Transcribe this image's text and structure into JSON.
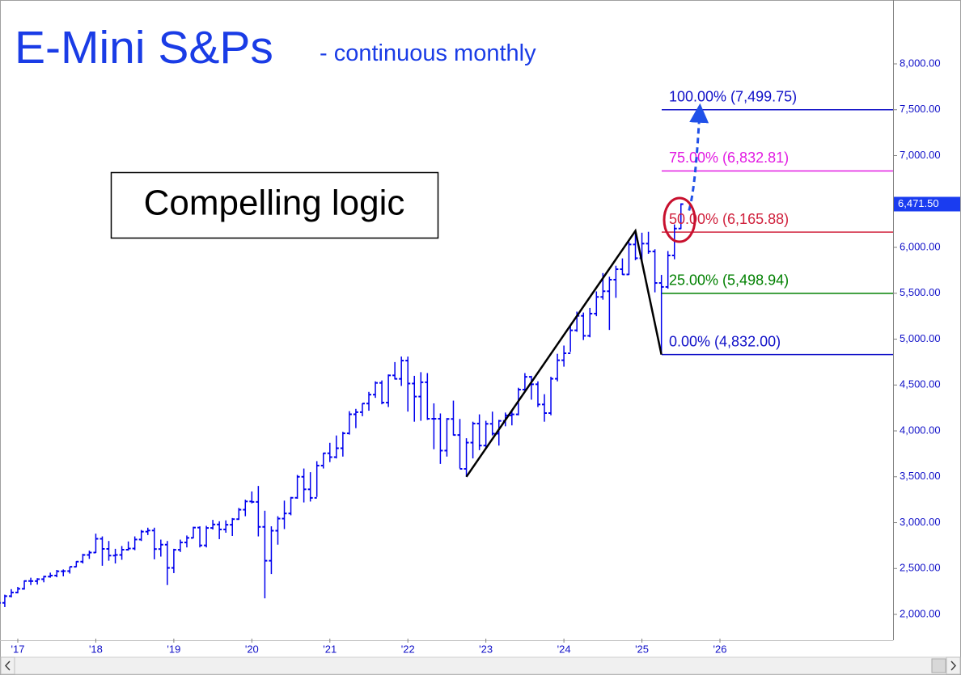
{
  "chart_data": {
    "type": "ohlc",
    "title": "E-Mini S&Ps",
    "subtitle": "- continuous monthly",
    "annotation": "Compelling logic",
    "color": "#0000ee",
    "categories": [
      null,
      null,
      null,
      "'17",
      null,
      null,
      null,
      null,
      null,
      null,
      null,
      null,
      null,
      null,
      null,
      "'18",
      null,
      null,
      null,
      null,
      null,
      null,
      null,
      null,
      null,
      null,
      null,
      "'19",
      null,
      null,
      null,
      null,
      null,
      null,
      null,
      null,
      null,
      null,
      null,
      "'20",
      null,
      null,
      null,
      null,
      null,
      null,
      null,
      null,
      null,
      null,
      null,
      "'21",
      null,
      null,
      null,
      null,
      null,
      null,
      null,
      null,
      null,
      null,
      null,
      "'22",
      null,
      null,
      null,
      null,
      null,
      null,
      null,
      null,
      null,
      null,
      null,
      "'23",
      null,
      null,
      null,
      null,
      null,
      null,
      null,
      null,
      null,
      null,
      null,
      "'24",
      null,
      null,
      null,
      null,
      null,
      null,
      null,
      null,
      null,
      null,
      null,
      "'25",
      null,
      null,
      null,
      null,
      null,
      null,
      null,
      null,
      null,
      null,
      null,
      "'26"
    ],
    "open": [
      2170,
      2126,
      2199,
      2239,
      2279,
      2364,
      2363,
      2384,
      2412,
      2423,
      2470,
      2472,
      2519,
      2575,
      2648,
      2674,
      2824,
      2714,
      2641,
      2648,
      2705,
      2718,
      2816,
      2902,
      2914,
      2712,
      2760,
      2507,
      2704,
      2784,
      2834,
      2946,
      2752,
      2942,
      2980,
      2926,
      2977,
      3038,
      3141,
      3231,
      3226,
      2954,
      2585,
      2912,
      3044,
      3100,
      3271,
      3500,
      3363,
      3270,
      3622,
      3756,
      3714,
      3811,
      3973,
      4181,
      4204,
      4298,
      4395,
      4523,
      4308,
      4605,
      4567,
      4766,
      4516,
      4374,
      4530,
      4132,
      4132,
      3785,
      4130,
      3955,
      3586,
      3872,
      4080,
      3840,
      4077,
      3970,
      4109,
      4169,
      4180,
      4450,
      4589,
      4508,
      4288,
      4194,
      4568,
      4770,
      4846,
      5096,
      5254,
      5036,
      5278,
      5460,
      5522,
      5648,
      5762,
      5705,
      6032,
      5882,
      6041,
      5955,
      5612,
      5569,
      5912,
      6205,
      null,
      null,
      null,
      null,
      null,
      null
    ],
    "high": [
      2180,
      2215,
      2275,
      2300,
      2370,
      2400,
      2395,
      2420,
      2455,
      2485,
      2490,
      2520,
      2580,
      2660,
      2695,
      2880,
      2850,
      2800,
      2715,
      2745,
      2795,
      2850,
      2920,
      2945,
      2945,
      2815,
      2800,
      2715,
      2815,
      2860,
      2955,
      2960,
      2965,
      3030,
      3015,
      3025,
      3050,
      3160,
      3250,
      3340,
      3400,
      3130,
      2960,
      3070,
      3240,
      3280,
      3520,
      3590,
      3550,
      3670,
      3760,
      3870,
      3950,
      3990,
      4215,
      4240,
      4300,
      4425,
      4540,
      4550,
      4615,
      4750,
      4810,
      4810,
      4600,
      4640,
      4630,
      4300,
      4190,
      4140,
      4330,
      4130,
      3920,
      4100,
      4180,
      4110,
      4210,
      4120,
      4200,
      4230,
      4470,
      4630,
      4600,
      4540,
      4400,
      4590,
      4840,
      4930,
      5140,
      5300,
      5290,
      5340,
      5520,
      5720,
      5680,
      5800,
      5880,
      6060,
      6180,
      6160,
      6170,
      5980,
      5700,
      5960,
      6250,
      6480,
      null,
      null,
      null,
      null,
      null,
      null
    ],
    "low": [
      2115,
      2080,
      2185,
      2230,
      2270,
      2320,
      2325,
      2350,
      2400,
      2405,
      2415,
      2445,
      2515,
      2555,
      2605,
      2670,
      2530,
      2585,
      2555,
      2595,
      2695,
      2700,
      2800,
      2865,
      2600,
      2630,
      2320,
      2450,
      2680,
      2730,
      2830,
      2730,
      2730,
      2925,
      2820,
      2890,
      2855,
      3030,
      3070,
      3210,
      2850,
      2175,
      2440,
      2760,
      2930,
      3080,
      3260,
      3220,
      3230,
      3280,
      3590,
      3660,
      3700,
      3720,
      3960,
      4030,
      4160,
      4220,
      4360,
      4290,
      4260,
      4560,
      4490,
      4210,
      4100,
      4110,
      4120,
      3800,
      3640,
      3720,
      3950,
      3590,
      3500,
      3700,
      3790,
      3800,
      3950,
      3840,
      4050,
      4060,
      4170,
      4430,
      4340,
      4260,
      4100,
      4170,
      4540,
      4700,
      4860,
      5080,
      4990,
      5020,
      5250,
      5430,
      5100,
      5450,
      5700,
      5700,
      5860,
      5840,
      5930,
      5510,
      4832,
      5550,
      5870,
      6200,
      null,
      null,
      null,
      null,
      null,
      null
    ],
    "close": [
      2126,
      2199,
      2239,
      2279,
      2364,
      2363,
      2384,
      2412,
      2423,
      2470,
      2472,
      2519,
      2575,
      2648,
      2674,
      2824,
      2714,
      2641,
      2648,
      2705,
      2718,
      2816,
      2902,
      2914,
      2712,
      2760,
      2507,
      2704,
      2784,
      2834,
      2946,
      2752,
      2942,
      2980,
      2926,
      2977,
      3038,
      3141,
      3231,
      3226,
      2954,
      2585,
      2912,
      3044,
      3100,
      3271,
      3500,
      3363,
      3270,
      3622,
      3756,
      3714,
      3811,
      3973,
      4181,
      4204,
      4298,
      4395,
      4523,
      4308,
      4605,
      4567,
      4766,
      4516,
      4374,
      4530,
      4132,
      4132,
      3785,
      4130,
      3955,
      3586,
      3872,
      4080,
      3840,
      4077,
      3970,
      4109,
      4169,
      4180,
      4450,
      4589,
      4508,
      4288,
      4194,
      4568,
      4770,
      4846,
      5096,
      5254,
      5036,
      5278,
      5460,
      5522,
      5648,
      5762,
      5705,
      6032,
      5882,
      6041,
      5955,
      5612,
      5569,
      5912,
      6205,
      6471.5,
      null,
      null,
      null,
      null,
      null,
      null
    ],
    "ylim": [
      1736,
      8696
    ],
    "yticks": [
      {
        "value": 2000,
        "label": "2,000.00"
      },
      {
        "value": 2500,
        "label": "2,500.00"
      },
      {
        "value": 3000,
        "label": "3,000.00"
      },
      {
        "value": 3500,
        "label": "3,500.00"
      },
      {
        "value": 4000,
        "label": "4,000.00"
      },
      {
        "value": 4500,
        "label": "4,500.00"
      },
      {
        "value": 5000,
        "label": "5,000.00"
      },
      {
        "value": 5500,
        "label": "5,500.00"
      },
      {
        "value": 6000,
        "label": "6,000.00"
      },
      {
        "value": 6500,
        "label": "6,500.00"
      },
      {
        "value": 7000,
        "label": "7,000.00"
      },
      {
        "value": 7500,
        "label": "7,500.00"
      },
      {
        "value": 8000,
        "label": "8,000.00"
      }
    ],
    "last_price": {
      "value": 6471.5,
      "label": "6,471.50"
    },
    "fib_levels": [
      {
        "value": 7499.75,
        "label": "100.00% (7,499.75)",
        "color": "#1010c8"
      },
      {
        "value": 6832.81,
        "label": "75.00% (6,832.81)",
        "color": "#e21ce2"
      },
      {
        "value": 6165.88,
        "label": "50.00% (6,165.88)",
        "color": "#d0203c"
      },
      {
        "value": 5498.94,
        "label": "25.00% (5,498.94)",
        "color": "#008000"
      },
      {
        "value": 4832,
        "label": "0.00% (4,832.00)",
        "color": "#1010c8"
      }
    ],
    "swing_color": "#000000",
    "projection_color": "#2050e8"
  }
}
